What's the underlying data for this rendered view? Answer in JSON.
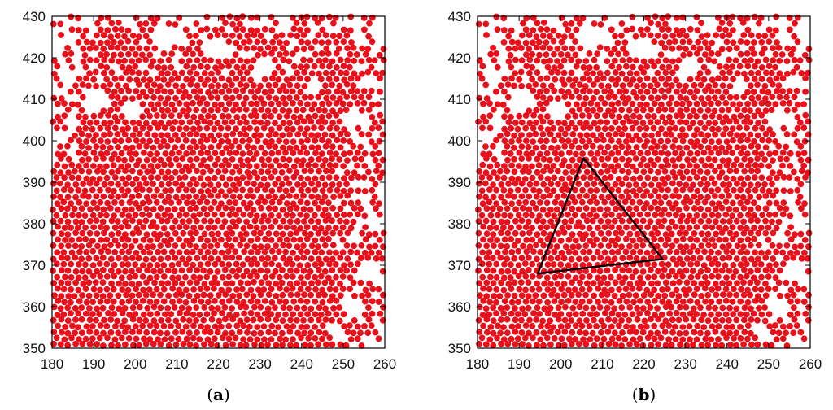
{
  "chart_data": [
    {
      "type": "scatter",
      "panel_label": "a",
      "xlim": [
        180,
        260
      ],
      "ylim": [
        350,
        430
      ],
      "x_ticks": [
        180,
        190,
        200,
        210,
        220,
        230,
        240,
        250,
        260
      ],
      "y_ticks": [
        350,
        360,
        370,
        380,
        390,
        400,
        410,
        420,
        430
      ],
      "grid": false,
      "marker_color": "#e8101a",
      "annotation": null
    },
    {
      "type": "scatter",
      "panel_label": "b",
      "xlim": [
        180,
        260
      ],
      "ylim": [
        350,
        430
      ],
      "x_ticks": [
        180,
        190,
        200,
        210,
        220,
        230,
        240,
        250,
        260
      ],
      "y_ticks": [
        350,
        360,
        370,
        380,
        390,
        400,
        410,
        420,
        430
      ],
      "grid": false,
      "marker_color": "#e8101a",
      "annotation": {
        "shape": "triangle",
        "color": "#000000",
        "vertices": [
          [
            205.5,
            395.8
          ],
          [
            224.5,
            371.5
          ],
          [
            194.5,
            368.0
          ]
        ]
      }
    }
  ]
}
